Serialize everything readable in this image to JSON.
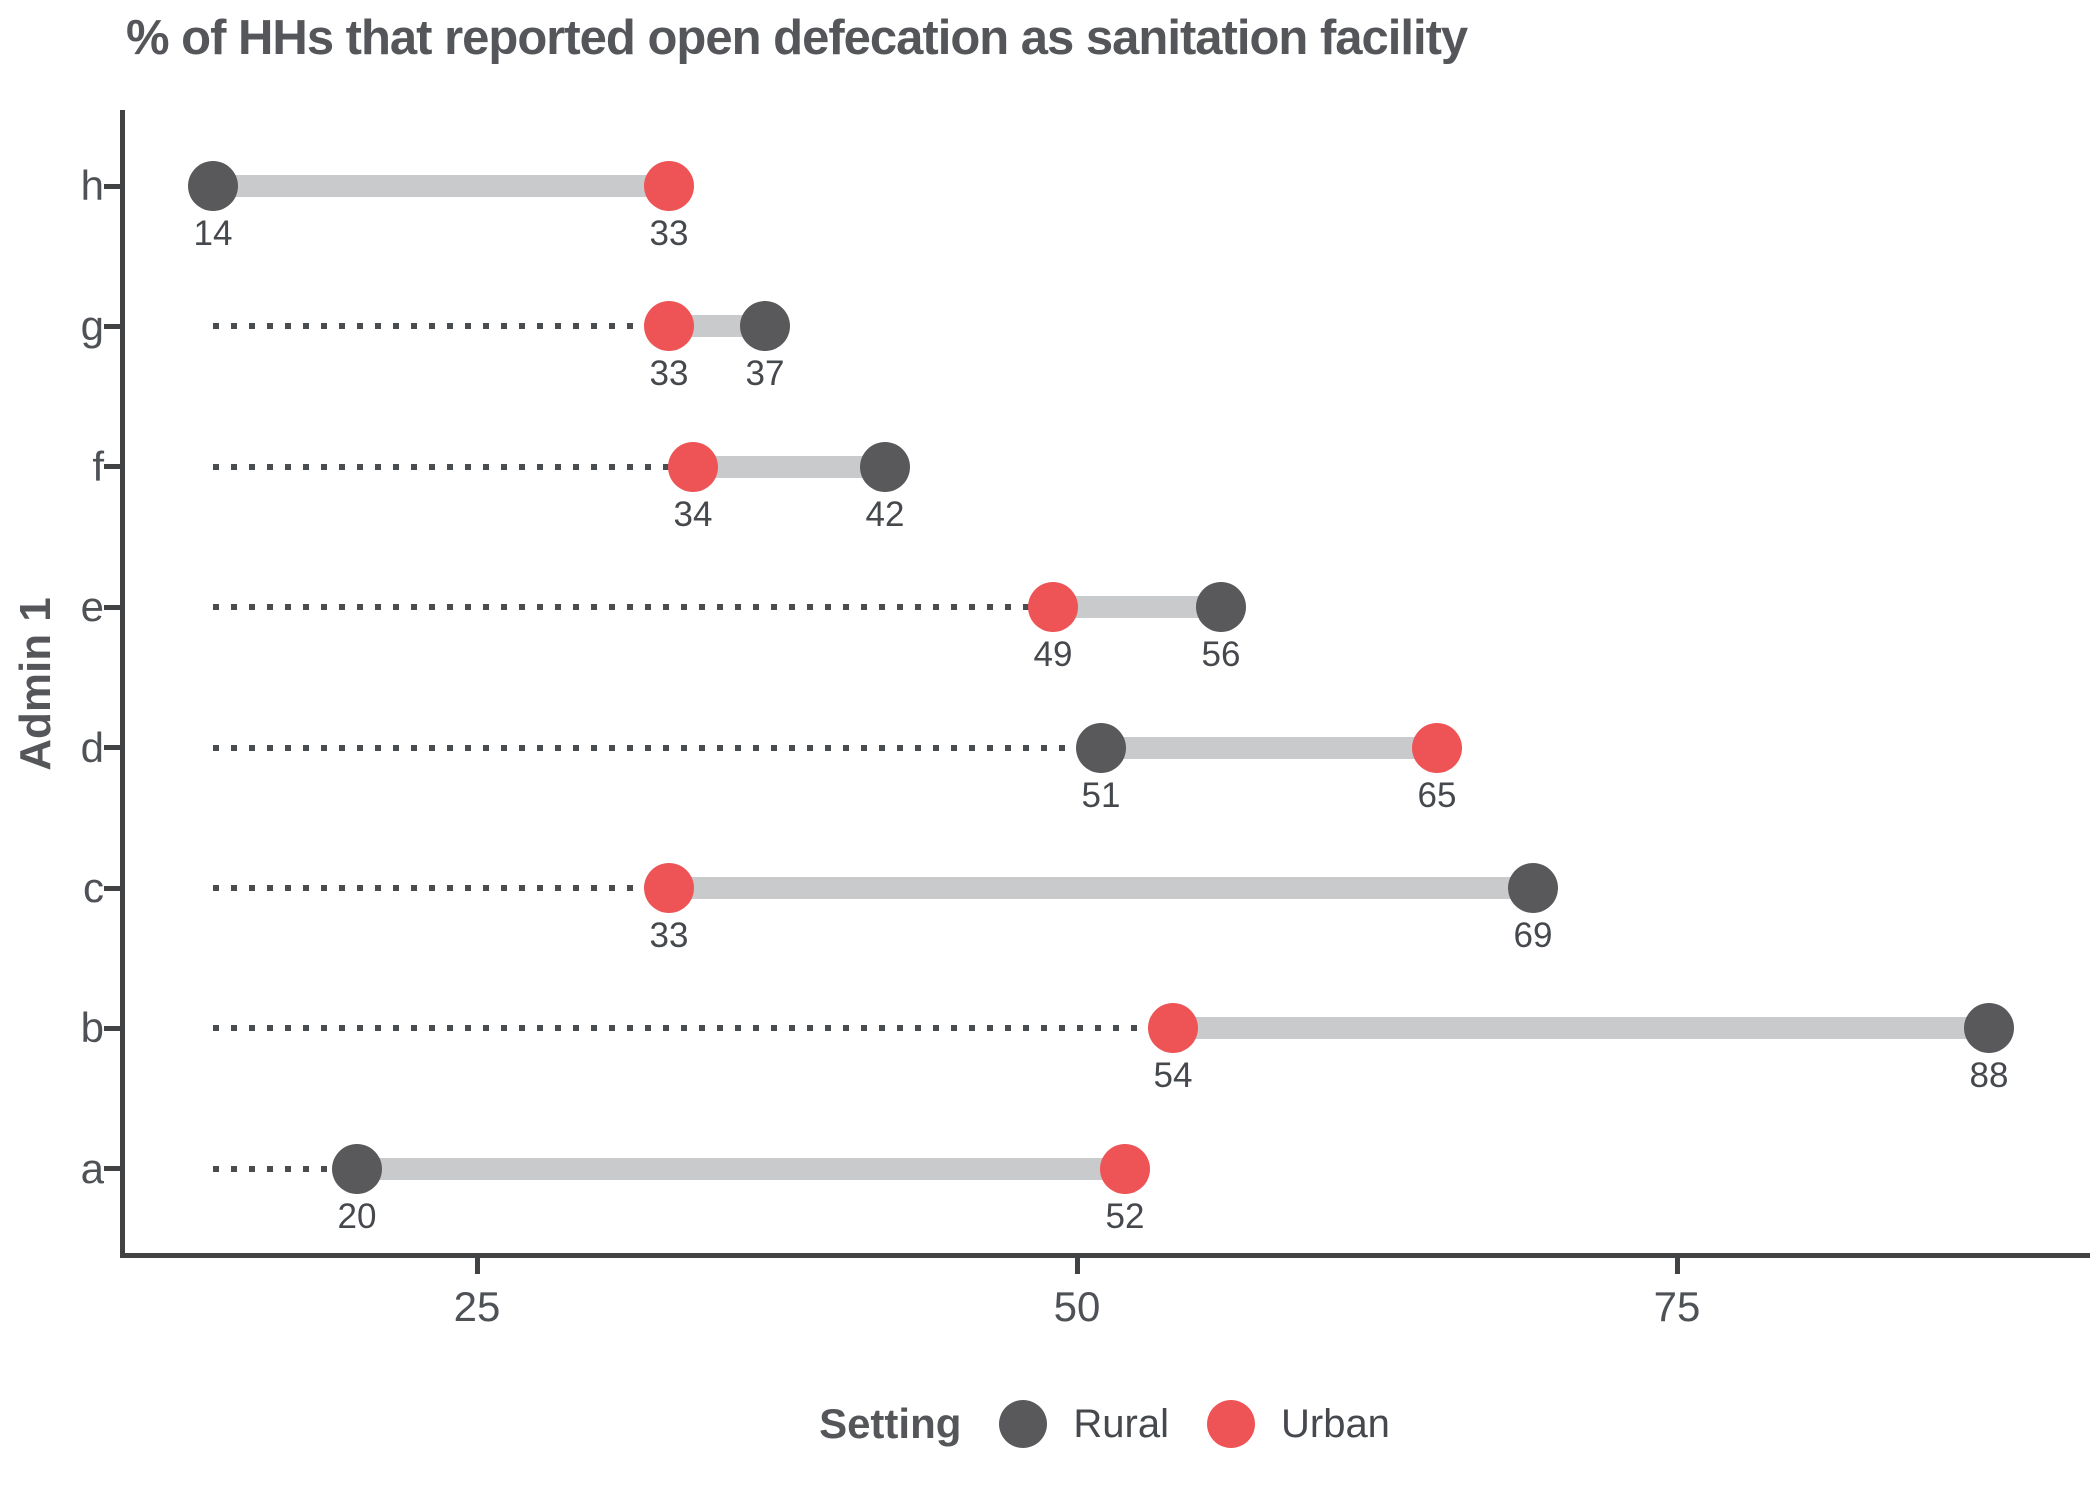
{
  "title": "% of HHs that reported open defecation as sanitation facility",
  "axes": {
    "y_title": "Admin 1",
    "x_tick_labels": [
      "25",
      "50",
      "75"
    ],
    "y_category_labels_top_to_bottom": [
      "h",
      "g",
      "f",
      "e",
      "d",
      "c",
      "b",
      "a"
    ]
  },
  "legend": {
    "title": "Setting",
    "items": [
      {
        "label": "Rural",
        "color": "#59595B"
      },
      {
        "label": "Urban",
        "color": "#EE5456"
      }
    ]
  },
  "colors": {
    "rural": "#59595B",
    "urban": "#EE5456",
    "connector": "#C9CACC",
    "dotted_line": "#4A4D50",
    "axis": "#414244",
    "title_text": "#54565A",
    "tick_text": "#4E5156",
    "value_text": "#45484C",
    "background": "#FFFFFF"
  },
  "chart_data": {
    "type": "dumbbell",
    "orientation": "horizontal",
    "title": "% of HHs that reported open defecation as sanitation facility",
    "xlabel": "",
    "ylabel": "Admin 1",
    "categories": [
      "h",
      "g",
      "f",
      "e",
      "d",
      "c",
      "b",
      "a"
    ],
    "series": [
      {
        "name": "Rural",
        "color": "#59595B",
        "values": [
          14,
          37,
          42,
          56,
          51,
          69,
          88,
          20
        ]
      },
      {
        "name": "Urban",
        "color": "#EE5456",
        "values": [
          33,
          33,
          34,
          49,
          65,
          33,
          54,
          52
        ]
      }
    ],
    "x_ticks": [
      25,
      50,
      75
    ],
    "xlim": [
      10.3,
      92
    ],
    "grid": "off",
    "value_labels_shown": true,
    "dotted_baseline_start_value": 14,
    "legend_position": "bottom"
  }
}
